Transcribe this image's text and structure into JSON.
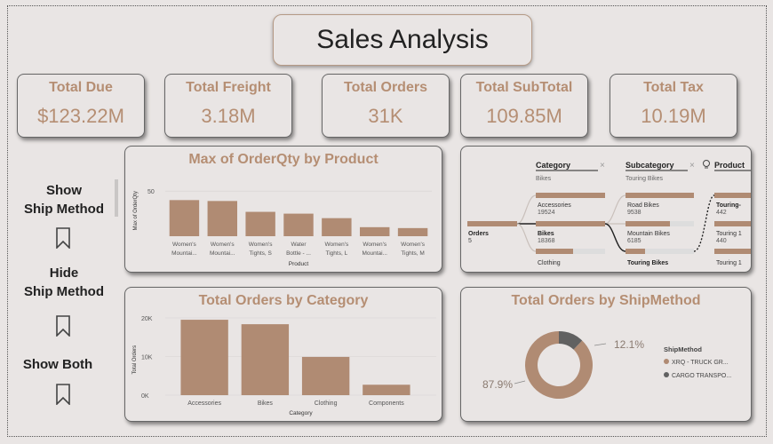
{
  "title": "Sales Analysis",
  "kpis": [
    {
      "label": "Total Due",
      "value": "$123.22M"
    },
    {
      "label": "Total Freight",
      "value": "3.18M"
    },
    {
      "label": "Total Orders",
      "value": "31K"
    },
    {
      "label": "Total SubTotal",
      "value": "109.85M"
    },
    {
      "label": "Total Tax",
      "value": "10.19M"
    }
  ],
  "buttons": {
    "show": "Show\nShip Method",
    "hide": "Hide\nShip Method",
    "both": "Show Both"
  },
  "colors": {
    "bar": "#b08b73",
    "accent": "#b58e73",
    "dark": "#616161"
  },
  "decomp": {
    "root": {
      "label": "Orders",
      "value": "5"
    },
    "category": {
      "header": "Category",
      "filter": "Bikes",
      "items": [
        {
          "name": "Accessories",
          "value": "19524"
        },
        {
          "name": "Bikes",
          "value": "18368"
        },
        {
          "name": "Clothing",
          "value": ""
        }
      ]
    },
    "subcategory": {
      "header": "Subcategory",
      "filter": "Touring Bikes",
      "items": [
        {
          "name": "Road Bikes",
          "value": "9538"
        },
        {
          "name": "Mountain Bikes",
          "value": "6185"
        },
        {
          "name": "Touring Bikes",
          "value": ""
        }
      ]
    },
    "product": {
      "header": "Product",
      "items": [
        {
          "name": "Touring-",
          "value": "442"
        },
        {
          "name": "Touring 1",
          "value": "440"
        },
        {
          "name": "Touring 1",
          "value": ""
        }
      ]
    }
  },
  "chart_data": [
    {
      "type": "bar",
      "title": "Max of OrderQty by Product",
      "xlabel": "Product",
      "ylabel": "Max of OrderQty",
      "ylim": [
        0,
        60
      ],
      "yticks": [
        "50"
      ],
      "categories": [
        [
          "Women's",
          "Mountai..."
        ],
        [
          "Women's",
          "Mountai..."
        ],
        [
          "Women's",
          "Tights, S"
        ],
        [
          "Water",
          "Bottle - ..."
        ],
        [
          "Women's",
          "Tights, L"
        ],
        [
          "Women's",
          "Mountai..."
        ],
        [
          "Women's",
          "Tights, M"
        ]
      ],
      "values": [
        40,
        39,
        27,
        25,
        20,
        10,
        9
      ]
    },
    {
      "type": "bar",
      "title": "Total Orders by Category",
      "xlabel": "Category",
      "ylabel": "Total Orders",
      "ylim": [
        0,
        20000
      ],
      "yticks": [
        "20K",
        "10K",
        "0K"
      ],
      "categories": [
        "Accessories",
        "Bikes",
        "Clothing",
        "Components"
      ],
      "values": [
        19524,
        18368,
        9900,
        2700
      ]
    },
    {
      "type": "pie",
      "title": "Total Orders by ShipMethod",
      "legend_title": "ShipMethod",
      "slices": [
        {
          "name": "XRQ - TRUCK GR...",
          "percent": 87.9,
          "label": "87.9%",
          "color": "#b08b73"
        },
        {
          "name": "CARGO TRANSPO...",
          "percent": 12.1,
          "label": "12.1%",
          "color": "#616161"
        }
      ]
    }
  ]
}
